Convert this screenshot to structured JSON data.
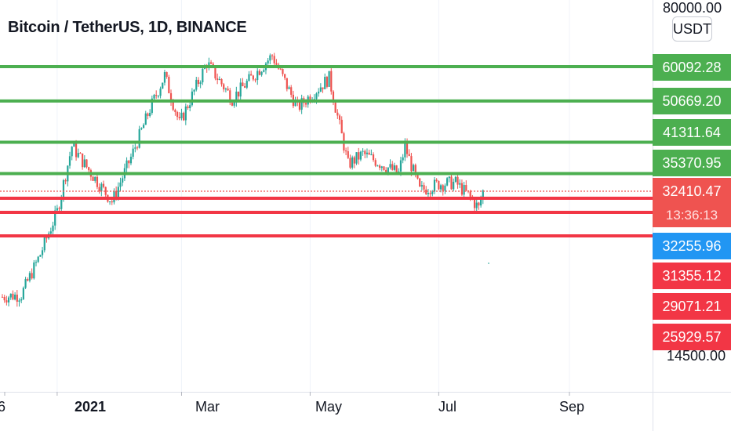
{
  "title": "Bitcoin / TetherUS, 1D, BINANCE",
  "unit_label": "USDT",
  "countdown": "13:36:13",
  "colors": {
    "up": "#26a69a",
    "down": "#ef5350",
    "support_line": "#4caf50",
    "resistance_line": "#f23645",
    "current_price_tag": "#2196f3",
    "axis_text": "#131722"
  },
  "chart_data": {
    "type": "candlestick",
    "title": "Bitcoin / TetherUS, 1D, BINANCE",
    "y_scale": "log",
    "y_axis_labels_visible": [
      "80000.00",
      "14500.00"
    ],
    "x_tick_labels": [
      "6",
      "2021",
      "Mar",
      "May",
      "Jul",
      "Sep"
    ],
    "current_price": "32410.47",
    "horizontal_levels": [
      {
        "label": "60092.28",
        "value": 60092.28,
        "color": "#4caf50"
      },
      {
        "label": "50669.20",
        "value": 50669.2,
        "color": "#4caf50"
      },
      {
        "label": "41311.64",
        "value": 41311.64,
        "color": "#4caf50"
      },
      {
        "label": "35370.95",
        "value": 35370.95,
        "color": "#4caf50"
      },
      {
        "label": "32410.47",
        "value": 32410.47,
        "color": "#ef5350"
      },
      {
        "label": "32255.96",
        "value": 32255.96,
        "color": "#2196f3"
      },
      {
        "label": "31355.12",
        "value": 31355.12,
        "color": "#f23645"
      },
      {
        "label": "29071.21",
        "value": 29071.21,
        "color": "#f23645"
      },
      {
        "label": "25929.57",
        "value": 25929.57,
        "color": "#f23645"
      }
    ],
    "price_series_close": [
      {
        "date": "2020-12-06",
        "close": 19200
      },
      {
        "date": "2020-12-15",
        "close": 19400
      },
      {
        "date": "2020-12-24",
        "close": 23700
      },
      {
        "date": "2021-01-01",
        "close": 29300
      },
      {
        "date": "2021-01-08",
        "close": 40500
      },
      {
        "date": "2021-01-16",
        "close": 36000
      },
      {
        "date": "2021-01-27",
        "close": 30800
      },
      {
        "date": "2021-02-05",
        "close": 38300
      },
      {
        "date": "2021-02-14",
        "close": 48700
      },
      {
        "date": "2021-02-21",
        "close": 57500
      },
      {
        "date": "2021-02-28",
        "close": 45300
      },
      {
        "date": "2021-03-13",
        "close": 61200
      },
      {
        "date": "2021-03-25",
        "close": 51300
      },
      {
        "date": "2021-04-13",
        "close": 63500
      },
      {
        "date": "2021-04-25",
        "close": 49000
      },
      {
        "date": "2021-05-10",
        "close": 56800
      },
      {
        "date": "2021-05-19",
        "close": 37000
      },
      {
        "date": "2021-05-26",
        "close": 39000
      },
      {
        "date": "2021-06-12",
        "close": 35400
      },
      {
        "date": "2021-06-15",
        "close": 40500
      },
      {
        "date": "2021-06-22",
        "close": 32500
      },
      {
        "date": "2021-07-01",
        "close": 33600
      },
      {
        "date": "2021-07-09",
        "close": 33800
      },
      {
        "date": "2021-07-15",
        "close": 31800
      },
      {
        "date": "2021-07-20",
        "close": 29800
      },
      {
        "date": "2021-07-22",
        "close": 32400
      }
    ]
  }
}
